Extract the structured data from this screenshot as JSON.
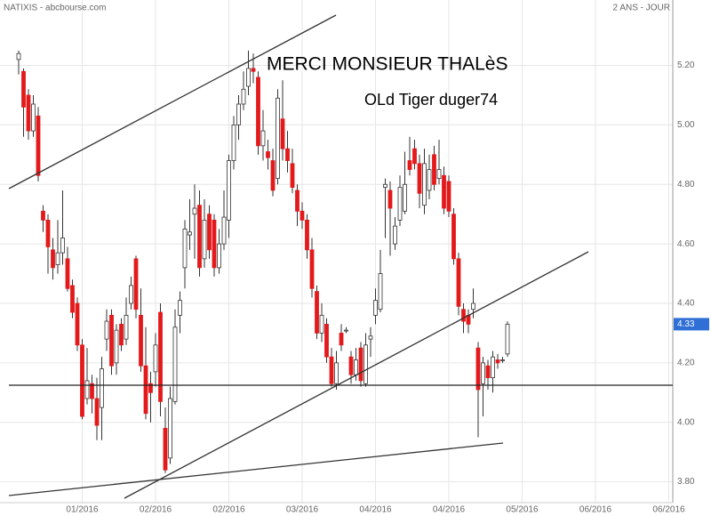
{
  "header": {
    "left": "NATIXIS - abcbourse.com",
    "right": "2 ANS - JOUR"
  },
  "chart_data": {
    "type": "candlestick",
    "annotations": [
      "MERCI MONSIEUR THALèS",
      "OLd Tiger duger74"
    ],
    "last_price": 4.33,
    "up_color": "#ffffff",
    "down_color": "#e3191b",
    "outline_color": "#333333",
    "grid": true,
    "xlim": [
      0,
      136
    ],
    "xticks": [
      {
        "value": 15,
        "label": "01/2016"
      },
      {
        "value": 30,
        "label": "02/2016"
      },
      {
        "value": 45,
        "label": "02/2016"
      },
      {
        "value": 60,
        "label": "03/2016"
      },
      {
        "value": 75,
        "label": "04/2016"
      },
      {
        "value": 90,
        "label": "04/2016"
      },
      {
        "value": 105,
        "label": "05/2016"
      },
      {
        "value": 120,
        "label": "06/2016"
      },
      {
        "value": 135,
        "label": "06/2016"
      }
    ],
    "ylim": [
      3.73,
      5.42
    ],
    "yticks": [
      {
        "value": 3.8,
        "label": "3.80"
      },
      {
        "value": 4,
        "label": "4.00"
      },
      {
        "value": 4.2,
        "label": "4.20"
      },
      {
        "value": 4.4,
        "label": "4.40"
      },
      {
        "value": 4.6,
        "label": "4.60"
      },
      {
        "value": 4.8,
        "label": "4.80"
      },
      {
        "value": 5,
        "label": "5.00"
      },
      {
        "value": 5.2,
        "label": "5.20"
      }
    ],
    "x": [
      2,
      3,
      4,
      5,
      6,
      7,
      8,
      9,
      10,
      11,
      12,
      13,
      14,
      15,
      16,
      17,
      18,
      19,
      20,
      21,
      22,
      23,
      24,
      25,
      26,
      27,
      28,
      29,
      30,
      31,
      32,
      33,
      34,
      35,
      36,
      37,
      38,
      39,
      40,
      41,
      42,
      43,
      44,
      45,
      46,
      47,
      48,
      49,
      50,
      51,
      52,
      53,
      54,
      55,
      56,
      57,
      58,
      59,
      60,
      61,
      62,
      63,
      64,
      65,
      66,
      67,
      68,
      69,
      70,
      71,
      72,
      73,
      74,
      75,
      76,
      77,
      78,
      79,
      80,
      81,
      82,
      83,
      84,
      85,
      86,
      87,
      88,
      89,
      90,
      91,
      92,
      93,
      94,
      95,
      96,
      97,
      98,
      99,
      100,
      101,
      102
    ],
    "open": [
      5.22,
      5.18,
      5.1,
      4.98,
      5.03,
      4.71,
      4.68,
      4.58,
      4.53,
      4.57,
      4.55,
      4.46,
      4.4,
      4.26,
      4.08,
      4.13,
      4.08,
      4.05,
      4.28,
      4.36,
      4.2,
      4.33,
      4.28,
      4.4,
      4.55,
      4.36,
      4.19,
      4.13,
      4.17,
      4.37,
      3.98,
      3.88,
      4.07,
      4.36,
      4.52,
      4.63,
      4.7,
      4.73,
      4.55,
      4.7,
      4.68,
      4.52,
      4.6,
      4.68,
      4.88,
      5.0,
      5.07,
      5.13,
      5.19,
      5.16,
      4.93,
      4.91,
      4.88,
      4.82,
      5.02,
      4.92,
      4.87,
      4.78,
      4.71,
      4.68,
      4.58,
      4.44,
      4.3,
      4.33,
      4.22,
      4.13,
      4.3,
      4.31,
      4.22,
      4.16,
      4.25,
      4.13,
      4.28,
      4.36,
      4.38,
      4.79,
      4.78,
      4.6,
      4.68,
      4.71,
      4.88,
      4.92,
      4.87,
      4.73,
      4.78,
      4.9,
      4.82,
      4.83,
      4.81,
      4.7,
      4.55,
      4.38,
      4.36,
      4.38,
      4.25,
      4.13,
      4.19,
      4.15,
      4.21,
      4.21,
      4.23
    ],
    "high": [
      5.25,
      5.19,
      5.12,
      5.1,
      5.06,
      4.73,
      4.7,
      4.62,
      4.68,
      4.78,
      4.59,
      4.48,
      4.42,
      4.28,
      4.25,
      4.16,
      4.15,
      4.22,
      4.38,
      4.38,
      4.33,
      4.35,
      4.42,
      4.49,
      4.56,
      4.45,
      4.32,
      4.17,
      4.3,
      4.4,
      4.05,
      4.12,
      4.38,
      4.44,
      4.68,
      4.75,
      4.8,
      4.78,
      4.75,
      4.73,
      4.7,
      4.65,
      4.78,
      4.9,
      5.03,
      5.1,
      5.18,
      5.25,
      5.24,
      5.18,
      5.05,
      4.95,
      4.92,
      5.12,
      5.15,
      4.98,
      4.92,
      4.8,
      4.74,
      4.7,
      4.62,
      4.46,
      4.4,
      4.35,
      4.25,
      4.24,
      4.33,
      4.32,
      4.24,
      4.25,
      4.27,
      4.3,
      4.32,
      4.45,
      4.58,
      4.82,
      4.81,
      4.69,
      4.83,
      4.91,
      4.96,
      4.95,
      4.9,
      4.92,
      4.9,
      4.93,
      4.95,
      4.86,
      4.83,
      4.72,
      4.57,
      4.4,
      4.38,
      4.45,
      4.27,
      4.22,
      4.21,
      4.24,
      4.23,
      4.22,
      4.34
    ],
    "low": [
      5.17,
      4.96,
      4.95,
      4.96,
      4.81,
      4.64,
      4.5,
      4.48,
      4.5,
      4.53,
      4.44,
      4.35,
      4.24,
      4.01,
      4.06,
      4.03,
      3.94,
      3.94,
      4.24,
      4.16,
      4.16,
      4.24,
      4.26,
      4.38,
      4.35,
      4.17,
      4.01,
      4.0,
      4.12,
      4.02,
      3.83,
      3.86,
      4.06,
      4.3,
      4.45,
      4.58,
      4.55,
      4.49,
      4.52,
      4.55,
      4.49,
      4.5,
      4.58,
      4.62,
      4.85,
      4.95,
      5.05,
      5.1,
      5.14,
      4.9,
      4.88,
      4.85,
      4.76,
      4.8,
      4.88,
      4.84,
      4.77,
      4.66,
      4.65,
      4.55,
      4.42,
      4.28,
      4.27,
      4.2,
      4.12,
      4.11,
      4.24,
      4.3,
      4.13,
      4.14,
      4.12,
      4.12,
      4.22,
      4.33,
      4.37,
      4.62,
      4.56,
      4.58,
      4.66,
      4.7,
      4.83,
      4.85,
      4.72,
      4.7,
      4.75,
      4.78,
      4.8,
      4.7,
      4.69,
      4.53,
      4.36,
      4.3,
      4.3,
      4.35,
      3.95,
      4.02,
      4.11,
      4.1,
      4.18,
      4.2,
      4.22
    ],
    "close": [
      5.24,
      5.06,
      4.98,
      5.07,
      4.83,
      4.68,
      4.59,
      4.52,
      4.57,
      4.62,
      4.45,
      4.37,
      4.26,
      4.02,
      4.14,
      4.08,
      3.99,
      4.18,
      4.34,
      4.19,
      4.31,
      4.26,
      4.36,
      4.46,
      4.38,
      4.19,
      4.03,
      4.1,
      4.26,
      4.07,
      3.84,
      4.08,
      4.32,
      4.41,
      4.65,
      4.64,
      4.72,
      4.52,
      4.68,
      4.58,
      4.52,
      4.6,
      4.69,
      4.88,
      5.0,
      5.07,
      5.12,
      5.19,
      5.18,
      4.93,
      4.98,
      4.89,
      4.78,
      5.09,
      4.92,
      4.88,
      4.79,
      4.71,
      4.68,
      4.58,
      4.45,
      4.3,
      4.36,
      4.22,
      4.13,
      4.2,
      4.26,
      4.31,
      4.16,
      4.21,
      4.14,
      4.26,
      4.29,
      4.41,
      4.5,
      4.8,
      4.72,
      4.66,
      4.79,
      4.8,
      4.85,
      4.87,
      4.77,
      4.87,
      4.85,
      4.8,
      4.85,
      4.72,
      4.71,
      4.55,
      4.39,
      4.34,
      4.33,
      4.4,
      4.11,
      4.2,
      4.15,
      4.22,
      4.2,
      4.21,
      4.33
    ]
  }
}
